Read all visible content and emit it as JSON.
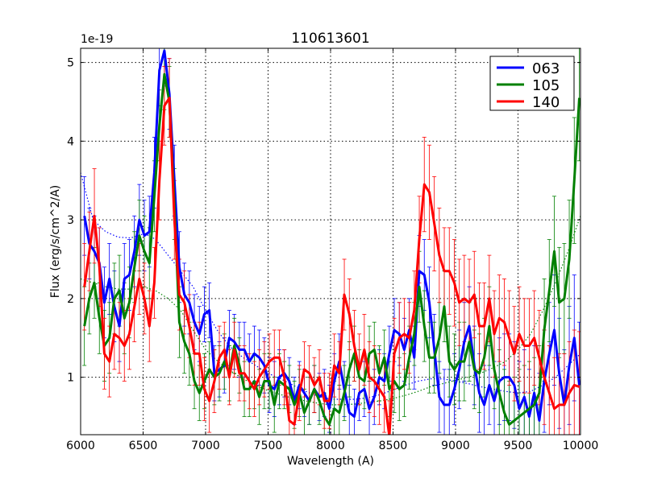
{
  "chart_data": {
    "type": "line",
    "title": "110613601",
    "xlabel": "Wavelength (A)",
    "ylabel": "Flux (erg/s/cm^2/A)",
    "offset_label": "1e-19",
    "xlim": [
      6000,
      10000
    ],
    "ylim": [
      0.27,
      5.18
    ],
    "xticks": [
      6000,
      6500,
      7000,
      7500,
      8000,
      8500,
      9000,
      9500,
      10000
    ],
    "yticks": [
      1,
      2,
      3,
      4,
      5
    ],
    "grid": true,
    "legend_position": "top-right",
    "series": [
      {
        "name": "063",
        "color": "#0000ff",
        "x": [
          6030,
          6070,
          6110,
          6150,
          6190,
          6230,
          6270,
          6310,
          6350,
          6390,
          6430,
          6470,
          6510,
          6550,
          6590,
          6630,
          6670,
          6710,
          6750,
          6790,
          6830,
          6870,
          6910,
          6950,
          6990,
          7030,
          7070,
          7110,
          7150,
          7190,
          7230,
          7270,
          7310,
          7350,
          7390,
          7430,
          7470,
          7510,
          7550,
          7590,
          7630,
          7670,
          7710,
          7750,
          7790,
          7830,
          7870,
          7910,
          7950,
          7990,
          8030,
          8070,
          8110,
          8150,
          8190,
          8230,
          8270,
          8310,
          8350,
          8390,
          8430,
          8470,
          8510,
          8550,
          8590,
          8630,
          8670,
          8710,
          8750,
          8790,
          8830,
          8870,
          8910,
          8950,
          8990,
          9030,
          9070,
          9110,
          9150,
          9190,
          9230,
          9270,
          9310,
          9350,
          9390,
          9430,
          9470,
          9510,
          9550,
          9590,
          9630,
          9670,
          9710,
          9750,
          9790,
          9830,
          9870,
          9910,
          9950,
          9990
        ],
        "y": [
          3.05,
          2.7,
          2.6,
          2.45,
          1.95,
          2.25,
          1.9,
          1.65,
          2.25,
          2.3,
          2.6,
          3.0,
          2.8,
          2.85,
          3.6,
          4.9,
          5.15,
          4.6,
          3.5,
          2.4,
          2.05,
          1.95,
          1.7,
          1.55,
          1.8,
          1.85,
          1.05,
          1.1,
          1.15,
          1.5,
          1.45,
          1.35,
          1.35,
          1.2,
          1.3,
          1.25,
          1.15,
          0.9,
          0.85,
          1.0,
          1.05,
          0.95,
          0.7,
          0.9,
          0.8,
          0.7,
          0.85,
          0.75,
          0.8,
          0.6,
          0.95,
          1.2,
          0.85,
          0.55,
          0.5,
          0.8,
          0.85,
          0.6,
          0.75,
          1.0,
          0.95,
          1.3,
          1.6,
          1.55,
          1.35,
          1.6,
          1.25,
          2.35,
          2.3,
          1.95,
          1.35,
          0.75,
          0.65,
          0.65,
          0.85,
          1.1,
          1.45,
          1.65,
          1.15,
          0.8,
          0.65,
          0.9,
          0.7,
          0.95,
          1.0,
          1.0,
          0.9,
          0.6,
          0.75,
          0.5,
          0.8,
          0.45,
          0.95,
          1.3,
          1.6,
          1.05,
          0.65,
          1.15,
          1.5,
          0.9
        ],
        "errors": [
          0.5,
          0.45,
          0.45,
          0.45,
          0.45,
          0.45,
          0.45,
          0.45,
          0.45,
          0.45,
          0.45,
          0.45,
          0.45,
          0.45,
          0.45,
          0.45,
          0.45,
          0.45,
          0.45,
          0.45,
          0.4,
          0.4,
          0.35,
          0.35,
          0.35,
          0.35,
          0.35,
          0.35,
          0.35,
          0.35,
          0.35,
          0.35,
          0.35,
          0.35,
          0.35,
          0.35,
          0.35,
          0.35,
          0.35,
          0.35,
          0.3,
          0.3,
          0.3,
          0.3,
          0.3,
          0.3,
          0.3,
          0.3,
          0.3,
          0.3,
          0.35,
          0.35,
          0.35,
          0.35,
          0.35,
          0.35,
          0.35,
          0.35,
          0.35,
          0.35,
          0.35,
          0.35,
          0.4,
          0.4,
          0.4,
          0.4,
          0.4,
          0.45,
          0.45,
          0.45,
          0.45,
          0.45,
          0.45,
          0.45,
          0.45,
          0.5,
          0.5,
          0.5,
          0.5,
          0.5,
          0.5,
          0.5,
          0.5,
          0.55,
          0.55,
          0.55,
          0.55,
          0.6,
          0.6,
          0.6,
          0.6,
          0.6,
          0.65,
          0.65,
          0.7,
          0.7,
          0.7,
          0.75,
          0.8,
          0.8
        ],
        "model_x": [
          6000,
          6100,
          6200,
          6300,
          6400,
          6500,
          6550,
          6600,
          6650,
          6700,
          6750,
          6800,
          6900,
          7000,
          7100,
          7200,
          7300,
          7400,
          7500,
          7600,
          7700,
          7800,
          7900,
          8000,
          8100,
          8200,
          8300,
          8400,
          8500,
          8600,
          8700,
          8800,
          8900,
          9000,
          9100,
          9200,
          9300,
          9400,
          9500,
          9600,
          9700,
          9800,
          9900,
          10000
        ],
        "model_y": [
          3.6,
          3.0,
          2.85,
          2.78,
          2.77,
          2.82,
          2.8,
          2.75,
          2.65,
          2.55,
          2.45,
          2.35,
          2.15,
          1.85,
          1.58,
          1.38,
          1.25,
          1.15,
          1.05,
          0.98,
          0.9,
          0.82,
          0.76,
          0.72,
          0.72,
          0.72,
          0.74,
          0.78,
          0.84,
          0.9,
          0.95,
          0.98,
          0.98,
          0.95,
          0.92,
          0.88,
          0.85,
          0.82,
          0.8,
          0.82,
          0.9,
          1.0,
          1.15,
          1.3
        ]
      },
      {
        "name": "105",
        "color": "#008000",
        "x": [
          6030,
          6070,
          6110,
          6150,
          6190,
          6230,
          6270,
          6310,
          6350,
          6390,
          6430,
          6470,
          6510,
          6550,
          6590,
          6630,
          6670,
          6710,
          6750,
          6790,
          6830,
          6870,
          6910,
          6950,
          6990,
          7030,
          7070,
          7110,
          7150,
          7190,
          7230,
          7270,
          7310,
          7350,
          7390,
          7430,
          7470,
          7510,
          7550,
          7590,
          7630,
          7670,
          7710,
          7750,
          7790,
          7830,
          7870,
          7910,
          7950,
          7990,
          8030,
          8070,
          8110,
          8150,
          8190,
          8230,
          8270,
          8310,
          8350,
          8390,
          8430,
          8470,
          8510,
          8550,
          8590,
          8630,
          8670,
          8710,
          8750,
          8790,
          8830,
          8870,
          8910,
          8950,
          8990,
          9030,
          9070,
          9110,
          9150,
          9190,
          9230,
          9270,
          9310,
          9350,
          9390,
          9430,
          9470,
          9510,
          9550,
          9590,
          9630,
          9670,
          9710,
          9750,
          9790,
          9830,
          9870,
          9910,
          9950,
          9990
        ],
        "y": [
          1.65,
          2.0,
          2.2,
          1.75,
          1.4,
          1.5,
          2.0,
          2.1,
          1.75,
          1.95,
          2.4,
          2.8,
          2.6,
          2.45,
          3.3,
          4.2,
          4.85,
          4.5,
          3.2,
          1.7,
          1.45,
          1.3,
          0.95,
          0.8,
          0.95,
          1.1,
          1.0,
          1.05,
          1.2,
          1.05,
          1.4,
          1.15,
          0.85,
          0.85,
          0.95,
          0.75,
          0.95,
          0.95,
          0.65,
          0.95,
          0.9,
          0.85,
          0.65,
          0.8,
          0.55,
          0.7,
          0.85,
          0.7,
          0.5,
          0.4,
          0.6,
          0.55,
          0.8,
          1.1,
          1.3,
          1.0,
          0.95,
          1.3,
          1.35,
          1.05,
          1.25,
          0.85,
          0.95,
          0.85,
          0.9,
          1.25,
          1.55,
          2.15,
          1.65,
          1.25,
          1.25,
          1.5,
          1.9,
          1.2,
          1.1,
          1.2,
          1.2,
          1.45,
          1.1,
          1.05,
          1.25,
          1.65,
          1.1,
          0.8,
          0.55,
          0.4,
          0.45,
          0.5,
          0.55,
          0.6,
          0.65,
          0.8,
          1.6,
          2.1,
          2.6,
          1.95,
          2.0,
          2.5,
          3.5,
          4.55
        ],
        "errors": [
          0.5,
          0.45,
          0.45,
          0.45,
          0.45,
          0.45,
          0.45,
          0.45,
          0.45,
          0.45,
          0.45,
          0.45,
          0.45,
          0.45,
          0.45,
          0.45,
          0.45,
          0.45,
          0.45,
          0.45,
          0.4,
          0.4,
          0.35,
          0.35,
          0.35,
          0.35,
          0.35,
          0.35,
          0.35,
          0.35,
          0.35,
          0.35,
          0.35,
          0.35,
          0.35,
          0.35,
          0.35,
          0.35,
          0.35,
          0.35,
          0.3,
          0.3,
          0.3,
          0.3,
          0.3,
          0.3,
          0.3,
          0.3,
          0.3,
          0.3,
          0.35,
          0.35,
          0.35,
          0.35,
          0.35,
          0.35,
          0.35,
          0.35,
          0.35,
          0.35,
          0.35,
          0.35,
          0.4,
          0.4,
          0.4,
          0.4,
          0.4,
          0.45,
          0.45,
          0.45,
          0.45,
          0.45,
          0.45,
          0.45,
          0.45,
          0.5,
          0.5,
          0.5,
          0.5,
          0.5,
          0.5,
          0.5,
          0.5,
          0.55,
          0.55,
          0.55,
          0.55,
          0.6,
          0.6,
          0.6,
          0.6,
          0.6,
          0.65,
          0.65,
          0.7,
          0.7,
          0.7,
          0.75,
          0.8,
          0.8
        ],
        "model_x": [
          6000,
          6100,
          6200,
          6300,
          6400,
          6500,
          6600,
          6700,
          6800,
          6900,
          7000,
          7100,
          7200,
          7300,
          7400,
          7500,
          7600,
          7700,
          7800,
          7900,
          8000,
          8100,
          8200,
          8300,
          8400,
          8500,
          8600,
          8700,
          8800,
          8900,
          9000,
          9100,
          9200,
          9300,
          9400,
          9500,
          9600,
          9700,
          9800,
          9900,
          10000
        ],
        "model_y": [
          2.25,
          2.2,
          2.15,
          2.12,
          2.12,
          2.15,
          2.1,
          2.0,
          1.85,
          1.6,
          1.35,
          1.2,
          1.08,
          0.98,
          0.9,
          0.83,
          0.78,
          0.73,
          0.7,
          0.67,
          0.65,
          0.65,
          0.66,
          0.68,
          0.7,
          0.73,
          0.77,
          0.82,
          0.88,
          0.92,
          0.96,
          1.0,
          1.05,
          1.12,
          1.2,
          1.35,
          1.55,
          1.85,
          2.2,
          2.6,
          3.05
        ]
      },
      {
        "name": "140",
        "color": "#ff0000",
        "x": [
          6030,
          6070,
          6110,
          6150,
          6190,
          6230,
          6270,
          6310,
          6350,
          6390,
          6430,
          6470,
          6510,
          6550,
          6590,
          6630,
          6670,
          6710,
          6750,
          6790,
          6830,
          6870,
          6910,
          6950,
          6990,
          7030,
          7070,
          7110,
          7150,
          7190,
          7230,
          7270,
          7310,
          7350,
          7390,
          7430,
          7470,
          7510,
          7550,
          7590,
          7630,
          7670,
          7710,
          7750,
          7790,
          7830,
          7870,
          7910,
          7950,
          7990,
          8030,
          8070,
          8110,
          8150,
          8190,
          8230,
          8270,
          8310,
          8350,
          8390,
          8430,
          8470,
          8510,
          8550,
          8590,
          8630,
          8670,
          8710,
          8750,
          8790,
          8830,
          8870,
          8910,
          8950,
          8990,
          9030,
          9070,
          9110,
          9150,
          9190,
          9230,
          9270,
          9310,
          9350,
          9390,
          9430,
          9470,
          9510,
          9550,
          9590,
          9630,
          9670,
          9710,
          9750,
          9790,
          9830,
          9870,
          9910,
          9950,
          9990
        ],
        "y": [
          2.15,
          2.6,
          3.05,
          2.4,
          1.3,
          1.2,
          1.55,
          1.5,
          1.4,
          1.55,
          1.9,
          2.25,
          2.0,
          1.65,
          2.2,
          3.5,
          4.45,
          4.55,
          3.0,
          2.05,
          1.95,
          1.65,
          1.3,
          1.3,
          0.85,
          0.7,
          0.95,
          1.25,
          1.35,
          1.0,
          1.35,
          1.05,
          1.05,
          0.95,
          0.85,
          1.0,
          1.1,
          1.2,
          1.25,
          1.25,
          1.0,
          0.45,
          0.4,
          0.8,
          1.1,
          1.05,
          0.9,
          1.0,
          0.7,
          0.7,
          1.15,
          1.05,
          2.05,
          1.8,
          1.4,
          1.1,
          1.35,
          1.0,
          0.95,
          0.85,
          0.75,
          0.25,
          1.3,
          1.5,
          1.55,
          1.5,
          1.85,
          2.75,
          3.45,
          3.35,
          2.95,
          2.55,
          2.35,
          2.35,
          2.2,
          1.95,
          2.0,
          1.95,
          2.05,
          1.65,
          1.65,
          2.0,
          1.55,
          1.75,
          1.7,
          1.5,
          1.3,
          1.55,
          1.4,
          1.4,
          1.5,
          1.25,
          1.0,
          0.8,
          0.6,
          0.65,
          0.65,
          0.8,
          0.9,
          0.88
        ],
        "errors": [
          0.55,
          0.5,
          0.6,
          0.5,
          0.45,
          0.45,
          0.45,
          0.45,
          0.45,
          0.45,
          0.45,
          0.45,
          0.45,
          0.45,
          0.45,
          0.5,
          0.5,
          0.5,
          0.5,
          0.45,
          0.4,
          0.4,
          0.4,
          0.4,
          0.4,
          0.4,
          0.4,
          0.4,
          0.35,
          0.35,
          0.35,
          0.35,
          0.35,
          0.35,
          0.35,
          0.35,
          0.35,
          0.35,
          0.35,
          0.35,
          0.35,
          0.35,
          0.35,
          0.35,
          0.35,
          0.35,
          0.35,
          0.35,
          0.35,
          0.35,
          0.4,
          0.4,
          0.45,
          0.45,
          0.45,
          0.45,
          0.45,
          0.45,
          0.45,
          0.45,
          0.45,
          0.45,
          0.45,
          0.45,
          0.45,
          0.45,
          0.5,
          0.55,
          0.6,
          0.6,
          0.6,
          0.6,
          0.55,
          0.55,
          0.55,
          0.55,
          0.55,
          0.55,
          0.55,
          0.55,
          0.55,
          0.55,
          0.55,
          0.55,
          0.55,
          0.6,
          0.6,
          0.6,
          0.6,
          0.6,
          0.6,
          0.6,
          0.6,
          0.6,
          0.65,
          0.65,
          0.65,
          0.65,
          0.7,
          0.7
        ],
        "model_x": [],
        "model_y": []
      }
    ]
  }
}
